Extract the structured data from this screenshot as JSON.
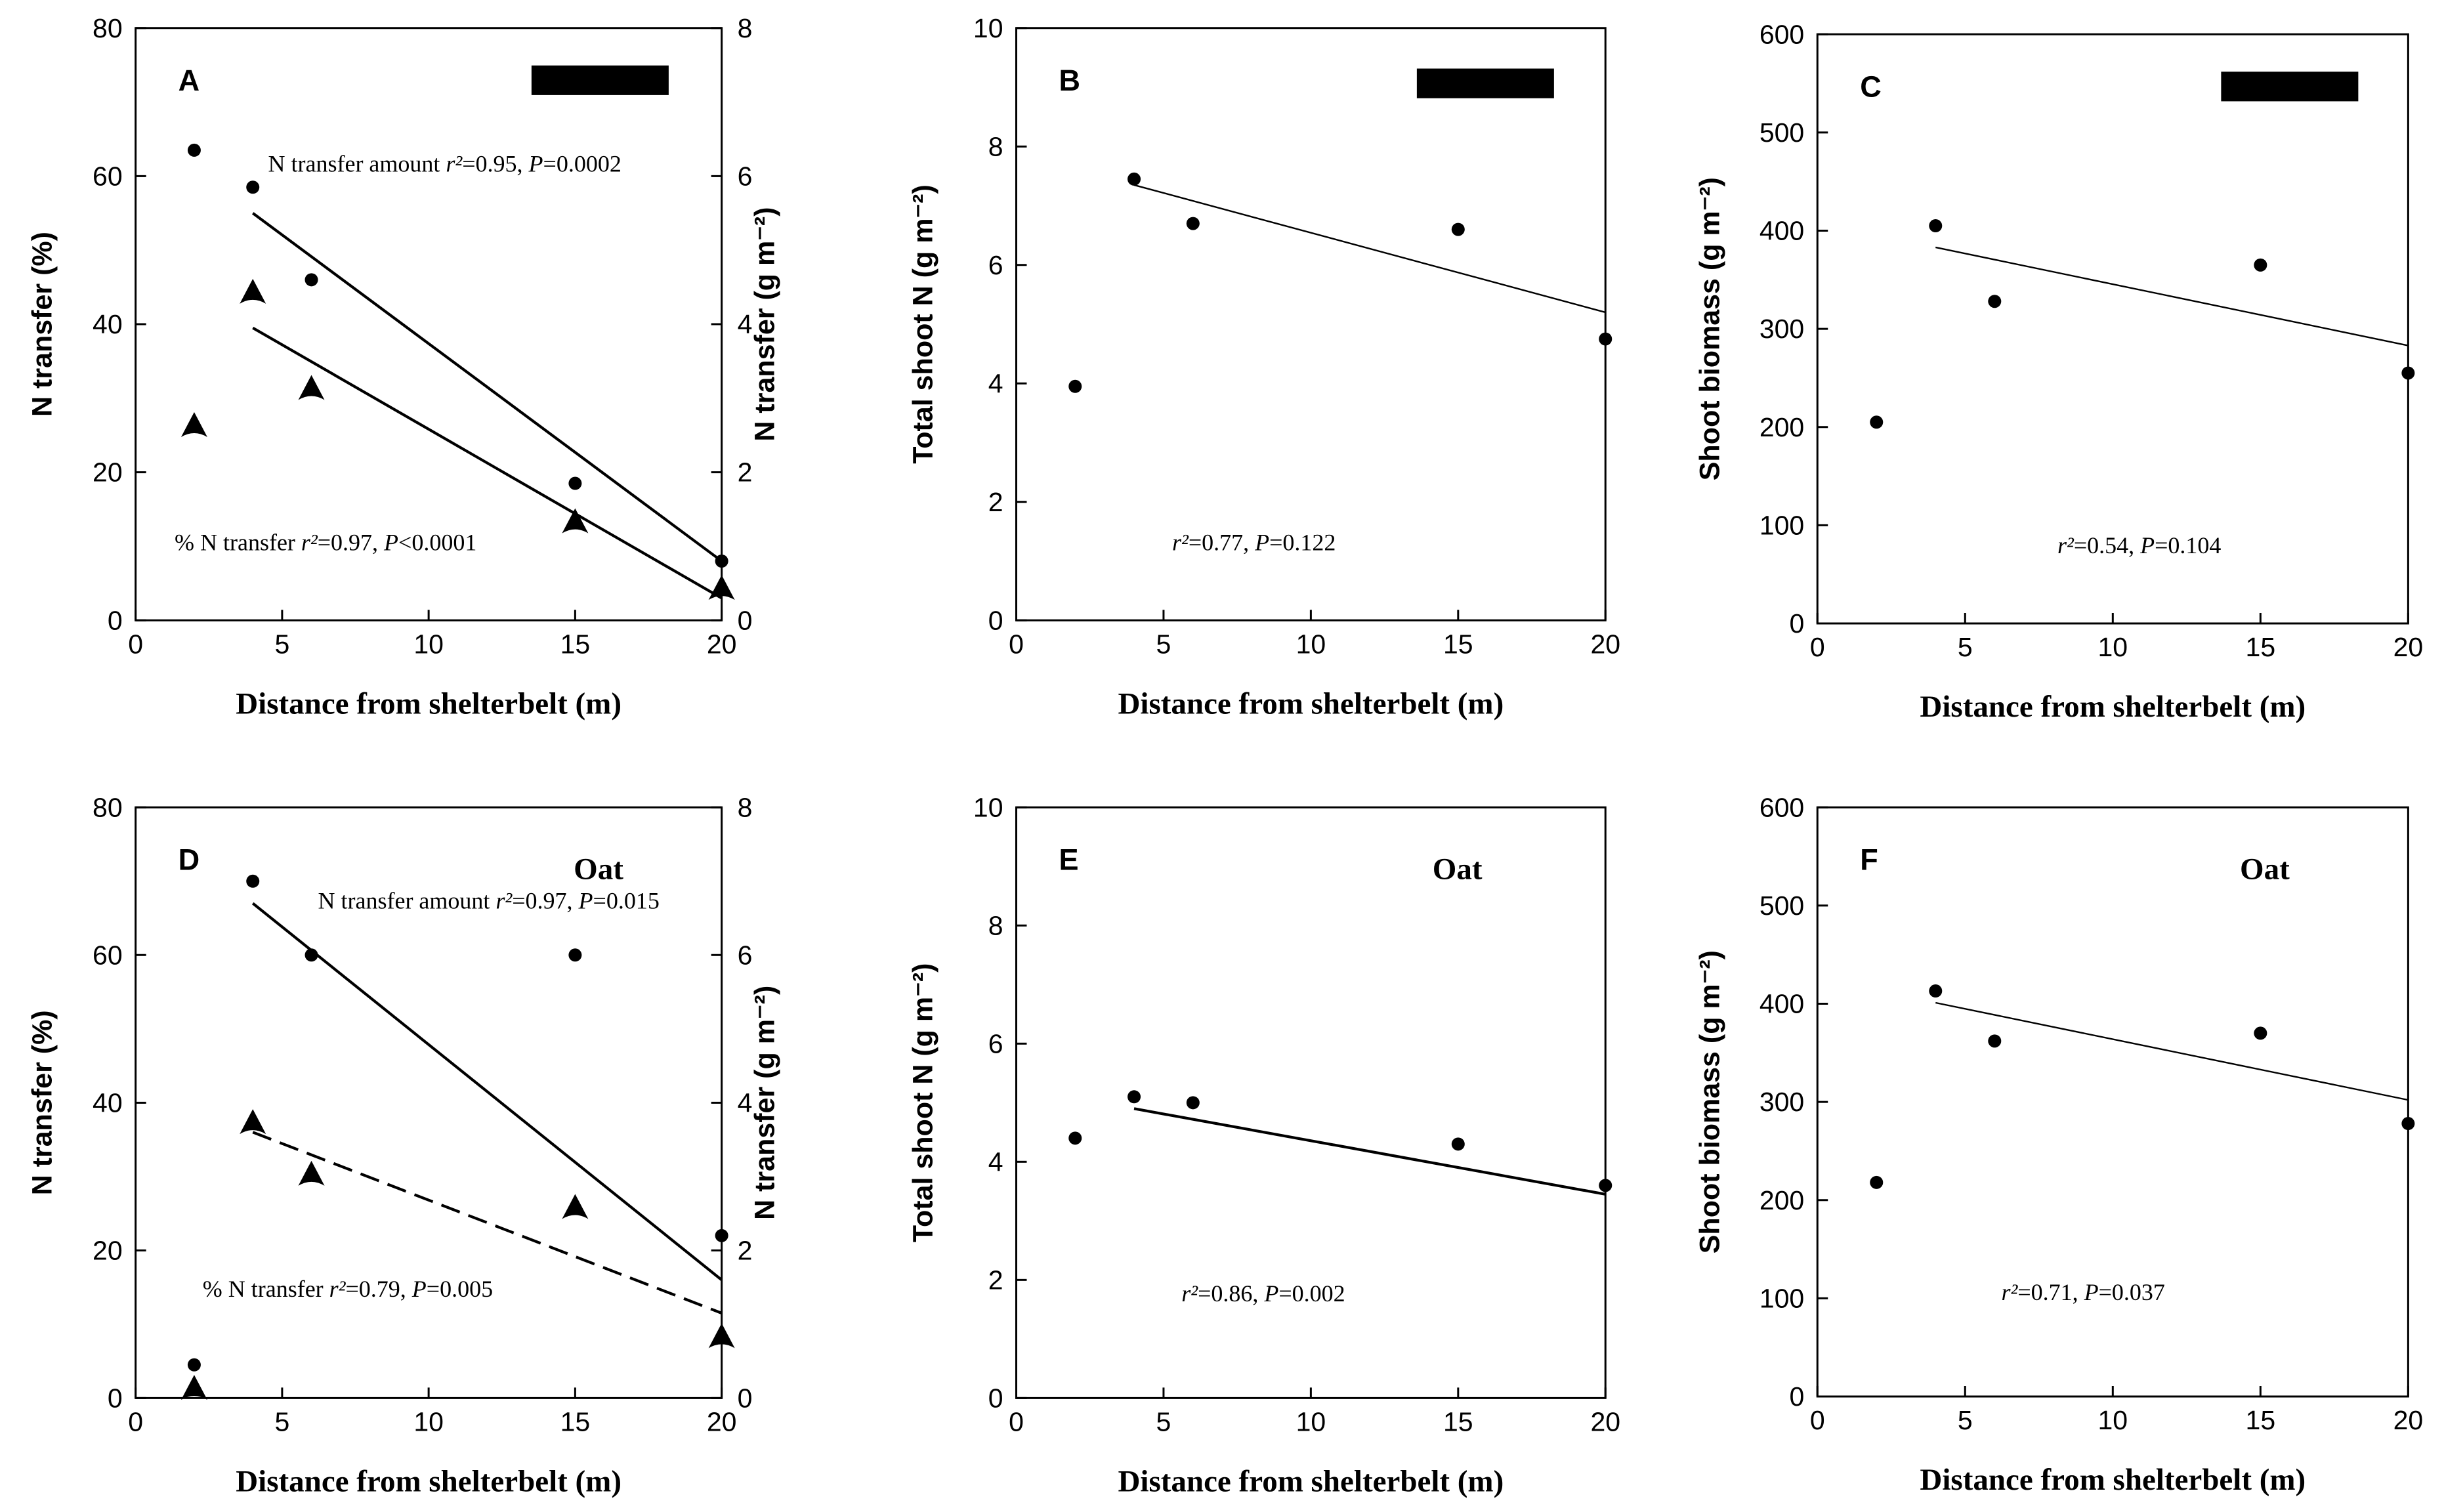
{
  "chart_data": [
    {
      "panel": "A",
      "type": "scatter",
      "panel_label": "A",
      "crop_label": "",
      "legend_box": true,
      "xlabel": "Distance from shelterbelt (m)",
      "ylabel": "N transfer (%)",
      "y2label": "N transfer (g m⁻²)",
      "xlim": [
        0,
        20
      ],
      "xticks": [
        "0",
        "5",
        "10",
        "15",
        "20"
      ],
      "ylim": [
        0,
        80
      ],
      "yticks": [
        "0",
        "20",
        "40",
        "60",
        "80"
      ],
      "y2lim": [
        0,
        8
      ],
      "y2ticks": [
        "0",
        "2",
        "4",
        "6",
        "8"
      ],
      "series": [
        {
          "name": "N transfer amount",
          "axis": "right",
          "marker": "circle",
          "x": [
            2,
            4,
            6,
            15,
            20
          ],
          "y": [
            6.35,
            5.85,
            4.6,
            1.85,
            0.8
          ],
          "fit": {
            "x": [
              4,
              20
            ],
            "y": [
              5.5,
              0.8
            ],
            "style": "solid"
          },
          "annotation": "N transfer amount r²=0.95, P=0.0002"
        },
        {
          "name": "% N transfer",
          "axis": "left",
          "marker": "triangle",
          "x": [
            2,
            4,
            6,
            15,
            20
          ],
          "y": [
            26,
            44,
            31,
            13,
            4
          ],
          "fit": {
            "x": [
              4,
              20
            ],
            "y": [
              39.5,
              3
            ],
            "style": "solid"
          },
          "annotation": "% N transfer r²=0.97, P<0.0001"
        }
      ]
    },
    {
      "panel": "B",
      "type": "scatter",
      "panel_label": "B",
      "crop_label": "",
      "legend_box": true,
      "xlabel": "Distance from shelterbelt (m)",
      "ylabel": "Total shoot N (g m⁻²)",
      "xlim": [
        0,
        20
      ],
      "xticks": [
        "0",
        "5",
        "10",
        "15",
        "20"
      ],
      "ylim": [
        0,
        10
      ],
      "yticks": [
        "0",
        "2",
        "4",
        "6",
        "8",
        "10"
      ],
      "series": [
        {
          "name": "Total shoot N",
          "axis": "left",
          "marker": "circle",
          "x": [
            2,
            4,
            6,
            15,
            20
          ],
          "y": [
            3.95,
            7.45,
            6.7,
            6.6,
            4.75
          ],
          "fit": {
            "x": [
              4,
              20
            ],
            "y": [
              7.35,
              5.2
            ],
            "style": "thin"
          },
          "annotation": "r²=0.77, P=0.122"
        }
      ]
    },
    {
      "panel": "C",
      "type": "scatter",
      "panel_label": "C",
      "crop_label": "",
      "legend_box": true,
      "xlabel": "Distance from shelterbelt (m)",
      "ylabel": "Shoot biomass (g m⁻²)",
      "xlim": [
        0,
        20
      ],
      "xticks": [
        "0",
        "5",
        "10",
        "15",
        "20"
      ],
      "ylim": [
        0,
        600
      ],
      "yticks": [
        "0",
        "100",
        "200",
        "300",
        "400",
        "500",
        "600"
      ],
      "series": [
        {
          "name": "Shoot biomass",
          "axis": "left",
          "marker": "circle",
          "x": [
            2,
            4,
            6,
            15,
            20
          ],
          "y": [
            205,
            405,
            328,
            365,
            255
          ],
          "fit": {
            "x": [
              4,
              20
            ],
            "y": [
              383,
              283
            ],
            "style": "thin"
          },
          "annotation": "r²=0.54, P=0.104"
        }
      ]
    },
    {
      "panel": "D",
      "type": "scatter",
      "panel_label": "D",
      "crop_label": "Oat",
      "legend_box": false,
      "xlabel": "Distance from shelterbelt (m)",
      "ylabel": "N transfer (%)",
      "y2label": "N transfer (g m⁻²)",
      "xlim": [
        0,
        20
      ],
      "xticks": [
        "0",
        "5",
        "10",
        "15",
        "20"
      ],
      "ylim": [
        0,
        80
      ],
      "yticks": [
        "0",
        "20",
        "40",
        "60",
        "80"
      ],
      "y2lim": [
        0,
        8
      ],
      "y2ticks": [
        "0",
        "2",
        "4",
        "6",
        "8"
      ],
      "series": [
        {
          "name": "N transfer amount",
          "axis": "right",
          "marker": "circle",
          "x": [
            2,
            4,
            6,
            15,
            20
          ],
          "y": [
            0.45,
            7.0,
            6.0,
            6.0,
            2.2
          ],
          "fit": {
            "x": [
              4,
              20
            ],
            "y": [
              6.7,
              1.6
            ],
            "style": "solid"
          },
          "annotation": "N transfer amount r²=0.97, P=0.015"
        },
        {
          "name": "% N transfer",
          "axis": "left",
          "marker": "triangle",
          "x": [
            2,
            4,
            6,
            15,
            20
          ],
          "y": [
            1,
            37,
            30,
            25.5,
            8
          ],
          "fit": {
            "x": [
              4,
              20
            ],
            "y": [
              36,
              11.5
            ],
            "style": "dashed"
          },
          "annotation": "% N transfer r²=0.79, P=0.005"
        }
      ]
    },
    {
      "panel": "E",
      "type": "scatter",
      "panel_label": "E",
      "crop_label": "Oat",
      "legend_box": false,
      "xlabel": "Distance from shelterbelt (m)",
      "ylabel": "Total shoot N (g m⁻²)",
      "xlim": [
        0,
        20
      ],
      "xticks": [
        "0",
        "5",
        "10",
        "15",
        "20"
      ],
      "ylim": [
        0,
        10
      ],
      "yticks": [
        "0",
        "2",
        "4",
        "6",
        "8",
        "10"
      ],
      "series": [
        {
          "name": "Total shoot N",
          "axis": "left",
          "marker": "circle",
          "x": [
            2,
            4,
            6,
            15,
            20
          ],
          "y": [
            4.4,
            5.1,
            5.0,
            4.3,
            3.6
          ],
          "fit": {
            "x": [
              4,
              20
            ],
            "y": [
              4.9,
              3.45
            ],
            "style": "solid"
          },
          "annotation": "r²=0.86, P=0.002"
        }
      ]
    },
    {
      "panel": "F",
      "type": "scatter",
      "panel_label": "F",
      "crop_label": "Oat",
      "legend_box": false,
      "xlabel": "Distance from shelterbelt (m)",
      "ylabel": "Shoot biomass (g m⁻²)",
      "xlim": [
        0,
        20
      ],
      "xticks": [
        "0",
        "5",
        "10",
        "15",
        "20"
      ],
      "ylim": [
        0,
        600
      ],
      "yticks": [
        "0",
        "100",
        "200",
        "300",
        "400",
        "500",
        "600"
      ],
      "series": [
        {
          "name": "Shoot biomass",
          "axis": "left",
          "marker": "circle",
          "x": [
            2,
            4,
            6,
            15,
            20
          ],
          "y": [
            218,
            413,
            362,
            370,
            278
          ],
          "fit": {
            "x": [
              4,
              20
            ],
            "y": [
              401,
              302
            ],
            "style": "thin"
          },
          "annotation": "r²=0.71, P=0.037"
        }
      ]
    }
  ]
}
